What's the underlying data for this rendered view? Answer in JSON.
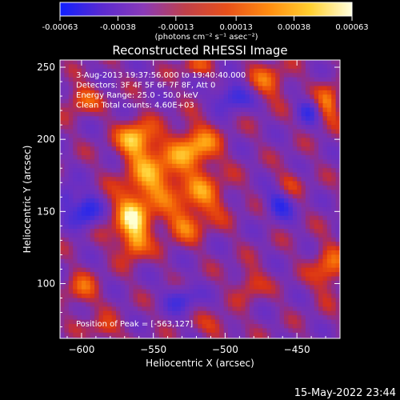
{
  "chart_data": {
    "type": "heatmap",
    "title": "Reconstructed RHESSI Image",
    "xlabel": "Heliocentric X (arcsec)",
    "ylabel": "Heliocentric Y (arcsec)",
    "xlim": [
      -615,
      -420
    ],
    "ylim": [
      62,
      255
    ],
    "x_ticks": [
      -600,
      -550,
      -500,
      -450
    ],
    "y_ticks": [
      100,
      150,
      200,
      250
    ],
    "colorbar": {
      "ticks": [
        -0.00063,
        -0.00038,
        -0.00013,
        0.00013,
        0.00038,
        0.00063
      ],
      "tick_labels": [
        "-0.00063",
        "-0.00038",
        "-0.00013",
        "0.00013",
        "0.00038",
        "0.00063"
      ],
      "range": [
        -0.00063,
        0.00063
      ],
      "colors": [
        "#1020ff",
        "#5a2ad0",
        "#8a3ab8",
        "#c0404a",
        "#e8501a",
        "#ff8c10",
        "#ffd030",
        "#ffffe0"
      ]
    },
    "units_label": "(photons cm⁻² s⁻¹ asec⁻²)",
    "annotations": [
      "3-Aug-2013 19:37:56.000 to 19:40:40.000",
      "Detectors: 3F 4F 5F 6F 7F 8F, Att 0",
      "Energy Range: 25.0 - 50.0 keV",
      "Clean     Total counts: 4.60E+03"
    ],
    "peak_label": "Position of Peak = [-563,127]",
    "peak": [
      -563,
      127
    ],
    "bright_sources": [
      {
        "x": -562,
        "y": 200,
        "sx": 9,
        "sy": 9,
        "a": 0.0005
      },
      {
        "x": -548,
        "y": 175,
        "sx": 14,
        "sy": 15,
        "a": 0.00042
      },
      {
        "x": -565,
        "y": 145,
        "sx": 10,
        "sy": 14,
        "a": 0.0005
      },
      {
        "x": -563,
        "y": 127,
        "sx": 6,
        "sy": 7,
        "a": 0.0003
      },
      {
        "x": -520,
        "y": 195,
        "sx": 11,
        "sy": 11,
        "a": 0.00045
      },
      {
        "x": -515,
        "y": 160,
        "sx": 12,
        "sy": 12,
        "a": 0.00034
      },
      {
        "x": -530,
        "y": 140,
        "sx": 10,
        "sy": 8,
        "a": 0.0003
      },
      {
        "x": -600,
        "y": 228,
        "sx": 8,
        "sy": 7,
        "a": 0.00032
      },
      {
        "x": -470,
        "y": 240,
        "sx": 10,
        "sy": 9,
        "a": 0.0003
      },
      {
        "x": -428,
        "y": 225,
        "sx": 6,
        "sy": 10,
        "a": 0.00036
      },
      {
        "x": -428,
        "y": 110,
        "sx": 8,
        "sy": 12,
        "a": 0.00034
      },
      {
        "x": -600,
        "y": 95,
        "sx": 8,
        "sy": 8,
        "a": 0.0003
      },
      {
        "x": -585,
        "y": 68,
        "sx": 8,
        "sy": 6,
        "a": 0.00026
      },
      {
        "x": -483,
        "y": 100,
        "sx": 7,
        "sy": 8,
        "a": 0.00026
      },
      {
        "x": -505,
        "y": 70,
        "sx": 9,
        "sy": 6,
        "a": 0.0002
      },
      {
        "x": -520,
        "y": 250,
        "sx": 8,
        "sy": 5,
        "a": 0.00024
      },
      {
        "x": -455,
        "y": 170,
        "sx": 7,
        "sy": 7,
        "a": 0.00018
      }
    ],
    "dark_sources": [
      {
        "x": -597,
        "y": 150,
        "sx": 7,
        "sy": 8,
        "a": -0.00045
      },
      {
        "x": -495,
        "y": 230,
        "sx": 9,
        "sy": 7,
        "a": -0.0004
      },
      {
        "x": -462,
        "y": 155,
        "sx": 7,
        "sy": 7,
        "a": -0.00038
      },
      {
        "x": -530,
        "y": 90,
        "sx": 8,
        "sy": 7,
        "a": -0.0003
      },
      {
        "x": -442,
        "y": 220,
        "sx": 6,
        "sy": 6,
        "a": -0.0003
      },
      {
        "x": -610,
        "y": 160,
        "sx": 5,
        "sy": 7,
        "a": -0.0003
      }
    ]
  },
  "footer": {
    "timestamp": "15-May-2022 23:44"
  }
}
